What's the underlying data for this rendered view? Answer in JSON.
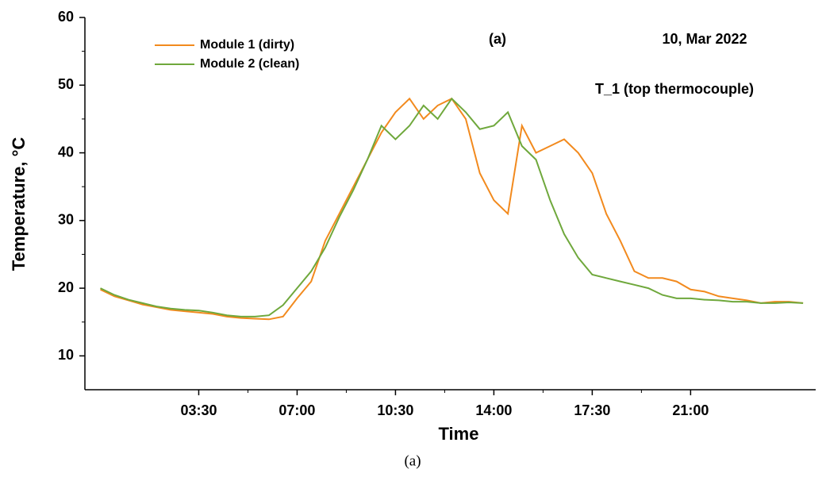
{
  "chart_data": {
    "type": "line",
    "annotations": [
      "(a)",
      "10, Mar 2022",
      "T_1 (top thermocouple)"
    ],
    "caption": "(a)",
    "x_label": "Time",
    "y_label": "Temperature, °C",
    "x": [
      0,
      0.5,
      1,
      1.5,
      2,
      2.5,
      3,
      3.5,
      4,
      4.5,
      5,
      5.5,
      6,
      6.5,
      7,
      7.5,
      8,
      8.5,
      9,
      9.5,
      10,
      10.5,
      11,
      11.5,
      12,
      12.5,
      13,
      13.5,
      14,
      14.5,
      15,
      15.5,
      16,
      16.5,
      17,
      17.5,
      18,
      18.5,
      19,
      19.5,
      20,
      20.5,
      21,
      21.5,
      22,
      22.5,
      23,
      23.5,
      24,
      24.5,
      25
    ],
    "series": [
      {
        "name": "Module 1 (dirty)",
        "color": "#f28a1e",
        "values": [
          19.8,
          18.8,
          18.2,
          17.6,
          17.2,
          16.8,
          16.6,
          16.4,
          16.2,
          15.8,
          15.6,
          15.5,
          15.4,
          15.8,
          18.5,
          21,
          27,
          31,
          35,
          39,
          43,
          46,
          48,
          45,
          47,
          48,
          45,
          37,
          33,
          31,
          44,
          40,
          41,
          42,
          40,
          37,
          31,
          27,
          22.5,
          21.5,
          21.5,
          21,
          19.8,
          19.5,
          18.8,
          18.5,
          18.2,
          17.8,
          18,
          18,
          17.8
        ]
      },
      {
        "name": "Module 2 (clean)",
        "color": "#6fa83c",
        "values": [
          20,
          19,
          18.3,
          17.8,
          17.3,
          17,
          16.8,
          16.7,
          16.4,
          16,
          15.8,
          15.8,
          16,
          17.5,
          20,
          22.5,
          26,
          30.5,
          34.5,
          39,
          44,
          42,
          44,
          47,
          45,
          48,
          46,
          43.5,
          44,
          46,
          41,
          39,
          33,
          28,
          24.5,
          22,
          21.5,
          21,
          20.5,
          20,
          19,
          18.5,
          18.5,
          18.3,
          18.2,
          18,
          18,
          17.8,
          17.8,
          17.9,
          17.8
        ]
      }
    ],
    "xlim": [
      -0.55,
      25.45
    ],
    "xticks": [
      {
        "value": 3.5,
        "label": "03:30"
      },
      {
        "value": 7,
        "label": "07:00"
      },
      {
        "value": 10.5,
        "label": "10:30"
      },
      {
        "value": 14,
        "label": "14:00"
      },
      {
        "value": 17.5,
        "label": "17:30"
      },
      {
        "value": 21,
        "label": "21:00"
      }
    ],
    "ylim": [
      5,
      60
    ],
    "yticks": [
      10,
      20,
      30,
      40,
      50,
      60
    ]
  }
}
